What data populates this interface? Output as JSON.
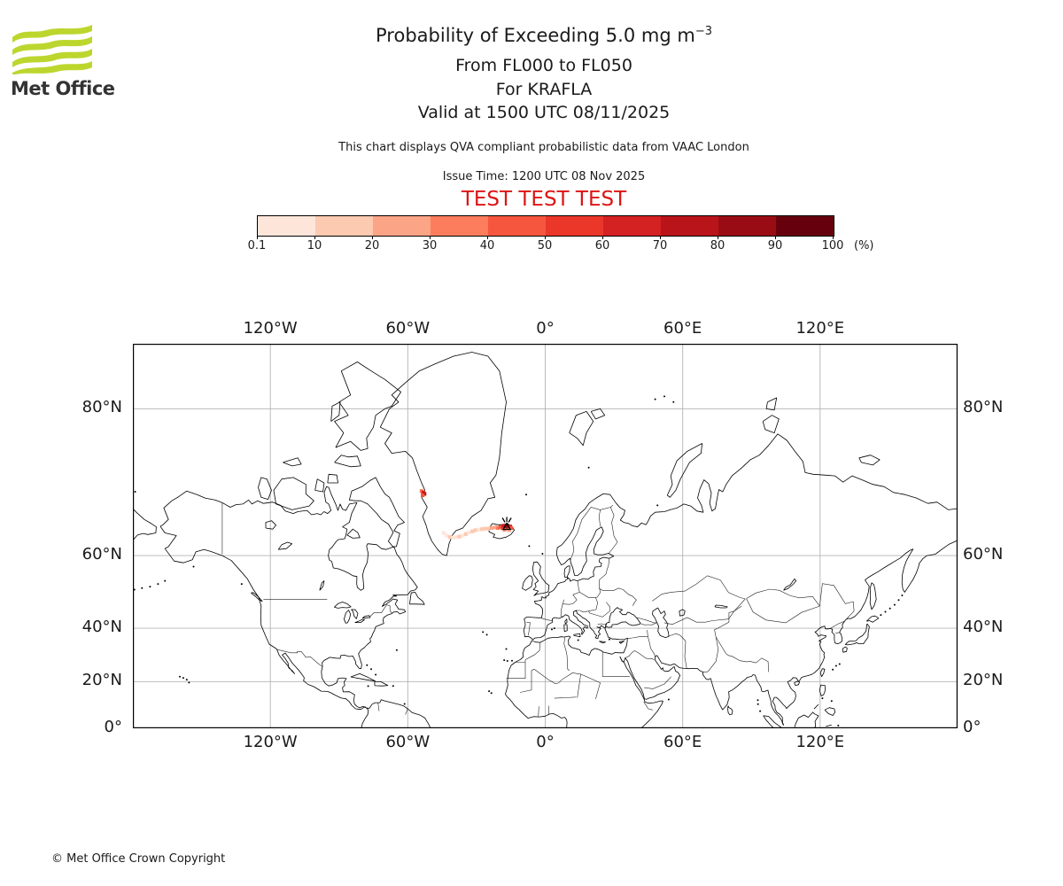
{
  "header": {
    "logo_text": "Met Office",
    "title_main": "Probability of Exceeding 5.0 mg m",
    "title_sup": "−3",
    "subtitle1": "From FL000 to FL050",
    "subtitle2": "For KRAFLA",
    "subtitle3": "Valid at 1500 UTC 08/11/2025",
    "note": "This chart displays QVA compliant probabilistic data from VAAC London",
    "issue_time": "Issue Time: 1200 UTC 08 Nov 2025",
    "test_banner": "TEST TEST TEST"
  },
  "colors": {
    "test_red": "#dd1414",
    "logo_green": "#bdd62e",
    "gridline": "#b4b4b4",
    "coastline": "#000000",
    "border_line": "#222222",
    "text": "#1a1a1a"
  },
  "colorbar": {
    "tick_labels": [
      "0.1",
      "10",
      "20",
      "30",
      "40",
      "50",
      "60",
      "70",
      "80",
      "90",
      "100"
    ],
    "unit_label": "(%)",
    "colors": [
      "#FEE5D9",
      "#FCC9B1",
      "#FCA486",
      "#FB7D5D",
      "#F6563E",
      "#EB362A",
      "#D42121",
      "#B81419",
      "#9A0C13",
      "#67000D"
    ]
  },
  "map": {
    "lon_ticks": [
      {
        "label": "120°W",
        "lon": -120
      },
      {
        "label": "60°W",
        "lon": -60
      },
      {
        "label": "0°",
        "lon": 0
      },
      {
        "label": "60°E",
        "lon": 60
      },
      {
        "label": "120°E",
        "lon": 120
      }
    ],
    "lat_ticks": [
      {
        "label": "80°N",
        "lat": 80
      },
      {
        "label": "60°N",
        "lat": 60
      },
      {
        "label": "40°N",
        "lat": 40
      },
      {
        "label": "20°N",
        "lat": 20
      },
      {
        "label": "0°",
        "lat": 0
      }
    ]
  },
  "chart_data": {
    "type": "heatmap",
    "title": "Probability of Exceeding 5.0 mg m−3",
    "threshold": "5.0 mg m−3",
    "flight_levels": "FL000 to FL050",
    "volcano": {
      "name": "KRAFLA",
      "lon": -16.78,
      "lat": 65.73
    },
    "probability_levels_percent": [
      0.1,
      10,
      20,
      30,
      40,
      50,
      60,
      70,
      80,
      90,
      100
    ],
    "lon_range": [
      -180,
      180
    ],
    "lat_range": [
      0,
      84
    ],
    "projection": "mercator",
    "plume_cells": [
      {
        "lon": -44.3,
        "lat": 64.6,
        "level": 1
      },
      {
        "lon": -43.0,
        "lat": 64.1,
        "level": 1
      },
      {
        "lon": -41.6,
        "lat": 63.8,
        "level": 2
      },
      {
        "lon": -40.2,
        "lat": 63.7,
        "level": 1
      },
      {
        "lon": -38.8,
        "lat": 63.8,
        "level": 1
      },
      {
        "lon": -37.4,
        "lat": 63.9,
        "level": 2
      },
      {
        "lon": -36.0,
        "lat": 64.1,
        "level": 1
      },
      {
        "lon": -34.6,
        "lat": 64.4,
        "level": 2
      },
      {
        "lon": -33.2,
        "lat": 64.7,
        "level": 1
      },
      {
        "lon": -31.8,
        "lat": 64.9,
        "level": 2
      },
      {
        "lon": -30.4,
        "lat": 65.1,
        "level": 2
      },
      {
        "lon": -29.0,
        "lat": 65.2,
        "level": 1
      },
      {
        "lon": -27.6,
        "lat": 65.3,
        "level": 2
      },
      {
        "lon": -26.2,
        "lat": 65.4,
        "level": 2
      },
      {
        "lon": -24.8,
        "lat": 65.4,
        "level": 2
      },
      {
        "lon": -23.4,
        "lat": 65.5,
        "level": 3
      },
      {
        "lon": -21.8,
        "lat": 65.6,
        "level": 3
      },
      {
        "lon": -20.6,
        "lat": 65.5,
        "level": 4
      },
      {
        "lon": -19.6,
        "lat": 65.7,
        "level": 5
      },
      {
        "lon": -18.6,
        "lat": 65.5,
        "level": 6
      },
      {
        "lon": -18.2,
        "lat": 65.9,
        "level": 7
      },
      {
        "lon": -17.4,
        "lat": 65.6,
        "level": 9
      },
      {
        "lon": -16.8,
        "lat": 65.8,
        "level": 10
      },
      {
        "lon": -16.2,
        "lat": 65.6,
        "level": 9
      },
      {
        "lon": -15.4,
        "lat": 65.8,
        "level": 7
      },
      {
        "lon": -14.8,
        "lat": 65.5,
        "level": 5
      },
      {
        "lon": -17.8,
        "lat": 65.2,
        "level": 4
      },
      {
        "lon": -15.8,
        "lat": 65.1,
        "level": 3
      },
      {
        "lon": -54.0,
        "lat": 71.4,
        "level": 4
      },
      {
        "lon": -53.3,
        "lat": 71.2,
        "level": 7
      },
      {
        "lon": -52.7,
        "lat": 71.0,
        "level": 8
      },
      {
        "lon": -53.5,
        "lat": 70.8,
        "level": 5
      }
    ]
  },
  "footer": {
    "copyright": "© Met Office Crown Copyright"
  }
}
